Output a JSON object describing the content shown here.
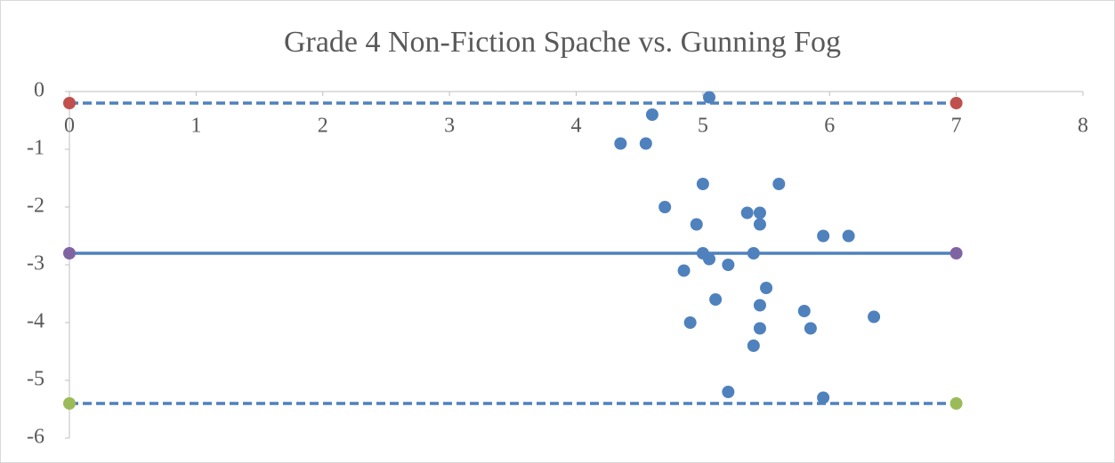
{
  "chart_data": {
    "type": "scatter",
    "title": "Grade 4 Non-Fiction Spache vs. Gunning Fog",
    "xlim": [
      0,
      8
    ],
    "xticks": [
      0,
      1,
      2,
      3,
      4,
      5,
      6,
      7,
      8
    ],
    "ylim": [
      -6,
      0
    ],
    "yticks": [
      0,
      -1,
      -2,
      -3,
      -4,
      -5,
      -6
    ],
    "grid": false,
    "series": [
      {
        "color": "#4f81bd",
        "x": [
          5.05,
          4.6,
          4.35,
          4.55,
          5.0,
          5.6,
          4.7,
          5.35,
          5.45,
          4.95,
          5.45,
          5.95,
          6.15,
          5.0,
          5.4,
          5.05,
          5.2,
          4.85,
          5.5,
          5.1,
          5.45,
          5.8,
          6.35,
          4.9,
          5.45,
          5.85,
          5.4,
          5.2,
          5.95
        ],
        "values": [
          -0.1,
          -0.4,
          -0.9,
          -0.9,
          -1.6,
          -1.6,
          -2.0,
          -2.1,
          -2.1,
          -2.3,
          -2.3,
          -2.5,
          -2.5,
          -2.8,
          -2.8,
          -2.9,
          -3.0,
          -3.1,
          -3.4,
          -3.6,
          -3.7,
          -3.8,
          -3.9,
          -4.0,
          -4.1,
          -4.1,
          -4.4,
          -5.2,
          -5.3
        ]
      },
      {
        "color": "#c0504d",
        "line_color": "#4f81bd",
        "line": "dashed",
        "x": [
          0,
          7
        ],
        "values": [
          -0.2,
          -0.2
        ]
      },
      {
        "color": "#8064a2",
        "line_color": "#4f81bd",
        "line": "solid",
        "x": [
          0,
          7
        ],
        "values": [
          -2.8,
          -2.8
        ]
      },
      {
        "color": "#9bbb59",
        "line_color": "#4f81bd",
        "line": "dashed",
        "x": [
          0,
          7
        ],
        "values": [
          -5.4,
          -5.4
        ]
      }
    ]
  }
}
